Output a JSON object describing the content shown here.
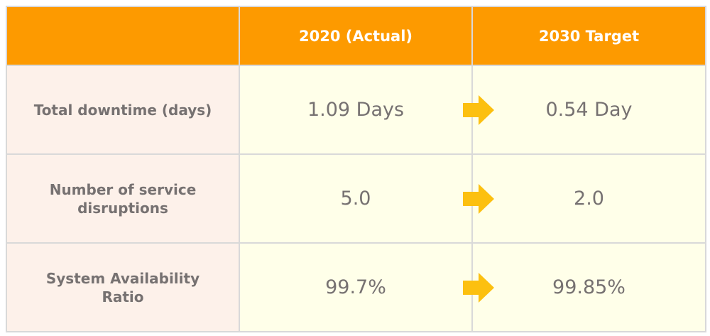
{
  "chart_data": {
    "type": "table",
    "columns": [
      "",
      "2020 (Actual)",
      "2030 Target"
    ],
    "rows": [
      {
        "metric": "Total downtime (days)",
        "actual": "1.09 Days",
        "target": "0.54 Day"
      },
      {
        "metric": "Number of service disruptions",
        "actual": "5.0",
        "target": "2.0"
      },
      {
        "metric": "System Availability Ratio",
        "actual": "99.7%",
        "target": "99.85%"
      }
    ],
    "arrow_icon": "right-arrow-icon"
  },
  "colors": {
    "header_bg": "#fd9a00",
    "header_text": "#ffffff",
    "label_bg": "#fdf1ea",
    "value_bg": "#ffffe9",
    "body_text": "#767171",
    "arrow_fill": "#fcc010",
    "grid_line": "#d9d9d9"
  }
}
